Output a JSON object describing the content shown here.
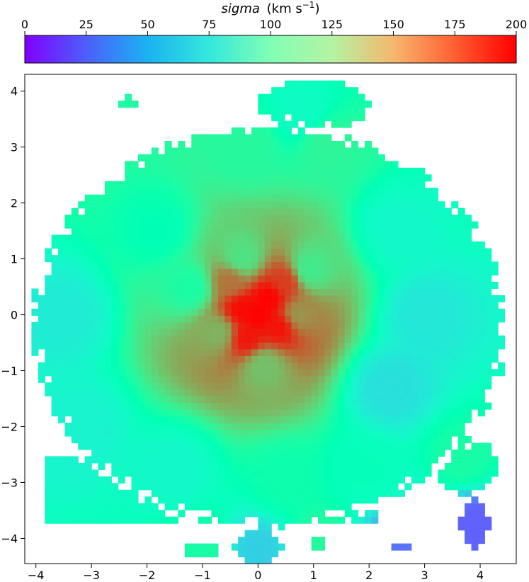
{
  "chart_data": {
    "type": "heatmap",
    "title": "",
    "colorbar": {
      "label_italic": "sigma",
      "label_unit": "(km s",
      "label_exp": "−1",
      "label_close": ")",
      "range": [
        0,
        200
      ],
      "ticks": [
        0,
        25,
        50,
        75,
        100,
        125,
        150,
        175,
        200
      ],
      "tick_labels": [
        "0",
        "25",
        "50",
        "75",
        "100",
        "125",
        "150",
        "175",
        "200"
      ],
      "colormap": "rainbow",
      "location": "top"
    },
    "xlim": [
      -4.2,
      4.65
    ],
    "ylim": [
      -4.45,
      4.3
    ],
    "x_ticks": [
      -4,
      -3,
      -2,
      -1,
      0,
      1,
      2,
      3,
      4
    ],
    "x_tick_labels": [
      "−4",
      "−3",
      "−2",
      "−1",
      "0",
      "1",
      "2",
      "3",
      "4"
    ],
    "y_ticks": [
      4,
      3,
      2,
      1,
      0,
      -1,
      -2,
      -3,
      -4
    ],
    "y_tick_labels": [
      "4",
      "3",
      "2",
      "1",
      "0",
      "−1",
      "−2",
      "−3",
      "−4"
    ],
    "grid": false,
    "description_points": [
      {
        "x": 0.0,
        "y": 0.0,
        "sigma": 200
      },
      {
        "x": 0.2,
        "y": 0.3,
        "sigma": 200
      },
      {
        "x": -0.3,
        "y": 0.1,
        "sigma": 198
      },
      {
        "x": 0.4,
        "y": -0.2,
        "sigma": 196
      },
      {
        "x": -0.2,
        "y": -0.4,
        "sigma": 195
      },
      {
        "x": 0.5,
        "y": 0.6,
        "sigma": 185
      },
      {
        "x": -0.5,
        "y": 0.6,
        "sigma": 170
      },
      {
        "x": 0.7,
        "y": 0.0,
        "sigma": 160
      },
      {
        "x": -0.7,
        "y": -0.3,
        "sigma": 150
      },
      {
        "x": 0.1,
        "y": -0.9,
        "sigma": 145
      },
      {
        "x": -0.3,
        "y": 1.0,
        "sigma": 130
      },
      {
        "x": 0.9,
        "y": 0.8,
        "sigma": 125
      },
      {
        "x": -1.2,
        "y": 0.5,
        "sigma": 110
      },
      {
        "x": -1.8,
        "y": 1.5,
        "sigma": 100
      },
      {
        "x": 2.5,
        "y": 1.5,
        "sigma": 85
      },
      {
        "x": 3.0,
        "y": 0.0,
        "sigma": 72
      },
      {
        "x": 2.4,
        "y": -1.3,
        "sigma": 68
      },
      {
        "x": -3.5,
        "y": 0.0,
        "sigma": 75
      },
      {
        "x": -3.2,
        "y": -2.0,
        "sigma": 80
      },
      {
        "x": -1.5,
        "y": -2.8,
        "sigma": 85
      },
      {
        "x": 0.5,
        "y": -3.0,
        "sigma": 105
      },
      {
        "x": 2.0,
        "y": -2.8,
        "sigma": 95
      },
      {
        "x": 3.7,
        "y": -2.6,
        "sigma": 110
      },
      {
        "x": -0.2,
        "y": 3.0,
        "sigma": 115
      },
      {
        "x": 1.2,
        "y": 3.1,
        "sigma": 118
      },
      {
        "x": 0.8,
        "y": 3.6,
        "sigma": 88
      },
      {
        "x": 0.0,
        "y": -4.2,
        "sigma": 60
      },
      {
        "x": 3.9,
        "y": -3.7,
        "sigma": 25
      },
      {
        "x": 2.5,
        "y": -4.2,
        "sigma": 30
      },
      {
        "x": -2.3,
        "y": 3.7,
        "sigma": 112
      },
      {
        "x": -1.0,
        "y": -4.2,
        "sigma": 110
      },
      {
        "x": 1.1,
        "y": -4.1,
        "sigma": 115
      }
    ]
  }
}
